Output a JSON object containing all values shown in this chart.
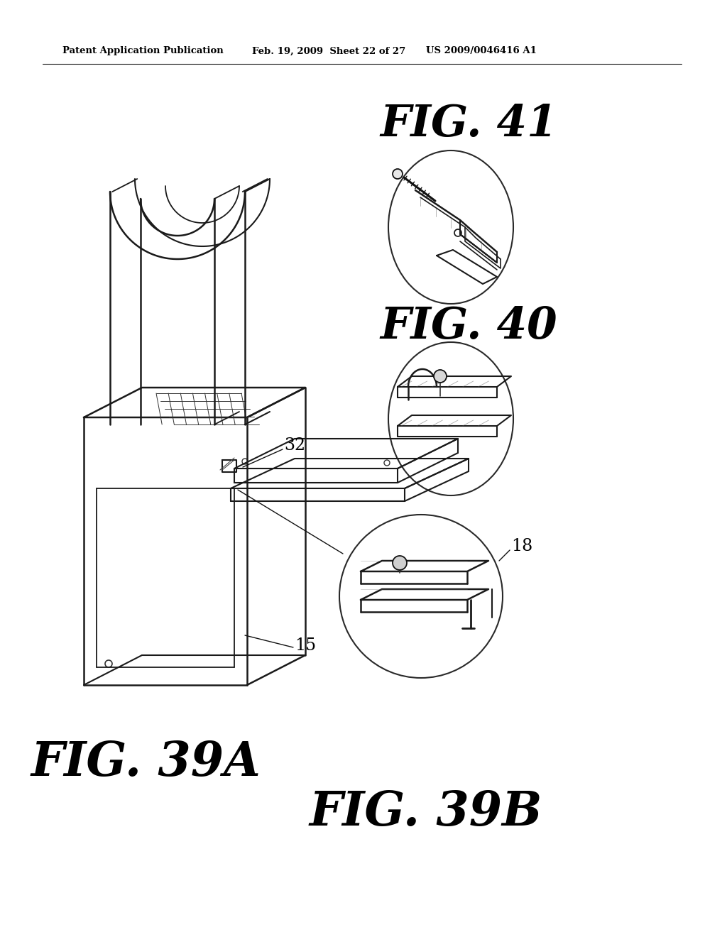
{
  "background_color": "#ffffff",
  "header_text": "Patent Application Publication",
  "header_date": "Feb. 19, 2009  Sheet 22 of 27",
  "header_patent": "US 2009/0046416 A1",
  "fig41_label": "FIG. 41",
  "fig40_label": "FIG. 40",
  "fig39a_label": "FIG. 39A",
  "fig39b_label": "FIG. 39B",
  "label_32": "32",
  "label_15": "15",
  "label_18": "18"
}
